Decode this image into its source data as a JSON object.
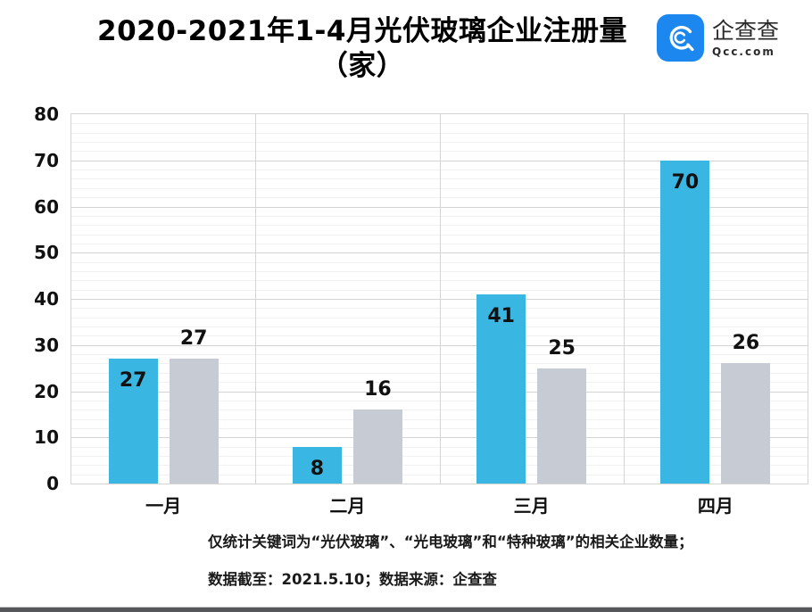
{
  "header": {
    "title_line1": "2020-2021年1-4月光伏玻璃企业注册量",
    "title_line2": "（家）",
    "logo": {
      "name": "企查查",
      "domain": "Qcc.com",
      "icon_color": "#1d87f0"
    }
  },
  "chart_data": {
    "type": "bar",
    "title": "2020-2021年1-4月光伏玻璃企业注册量（家）",
    "categories": [
      "一月",
      "二月",
      "三月",
      "四月"
    ],
    "series": [
      {
        "name": "blue",
        "color": "#39b7e2",
        "values": [
          27,
          8,
          41,
          70
        ],
        "label_position": "inside-top"
      },
      {
        "name": "gray",
        "color": "#c6cbd4",
        "values": [
          27,
          16,
          25,
          26
        ],
        "label_position": "above"
      }
    ],
    "xlabel": "",
    "ylabel": "",
    "ylim": [
      0,
      80
    ],
    "ytick_step": 10,
    "minor_step": 2,
    "grid": true,
    "legend_position": "none"
  },
  "footer": {
    "line1": "仅统计关键词为“光伏玻璃”、“光电玻璃”和“特种玻璃”的相关企业数量；",
    "line2": "数据截至：2021.5.10；数据来源：企查查"
  }
}
